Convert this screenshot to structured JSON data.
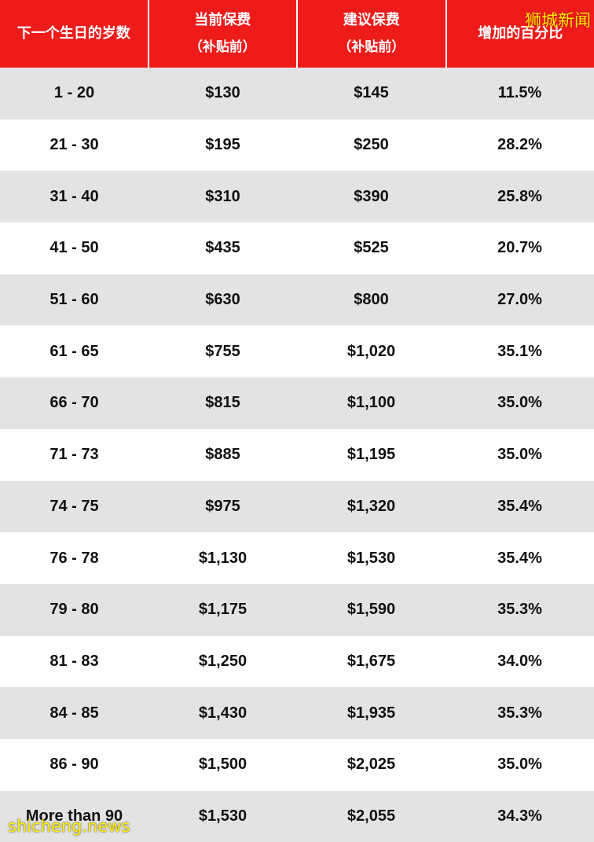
{
  "header": {
    "age": "下一个生日的岁数",
    "current_premium": "当前保费",
    "current_note": "（补贴前）",
    "proposed_premium": "建议保费",
    "proposed_note": "（补贴前）",
    "increase": "增加的百分比"
  },
  "rows": [
    {
      "age": "1 - 20",
      "current": "$130",
      "proposed": "$145",
      "increase": "11.5%"
    },
    {
      "age": "21 - 30",
      "current": "$195",
      "proposed": "$250",
      "increase": "28.2%"
    },
    {
      "age": "31 - 40",
      "current": "$310",
      "proposed": "$390",
      "increase": "25.8%"
    },
    {
      "age": "41 - 50",
      "current": "$435",
      "proposed": "$525",
      "increase": "20.7%"
    },
    {
      "age": "51 - 60",
      "current": "$630",
      "proposed": "$800",
      "increase": "27.0%"
    },
    {
      "age": "61 - 65",
      "current": "$755",
      "proposed": "$1,020",
      "increase": "35.1%"
    },
    {
      "age": "66 - 70",
      "current": "$815",
      "proposed": "$1,100",
      "increase": "35.0%"
    },
    {
      "age": "71 - 73",
      "current": "$885",
      "proposed": "$1,195",
      "increase": "35.0%"
    },
    {
      "age": "74 - 75",
      "current": "$975",
      "proposed": "$1,320",
      "increase": "35.4%"
    },
    {
      "age": "76 - 78",
      "current": "$1,130",
      "proposed": "$1,530",
      "increase": "35.4%"
    },
    {
      "age": "79 - 80",
      "current": "$1,175",
      "proposed": "$1,590",
      "increase": "35.3%"
    },
    {
      "age": "81 - 83",
      "current": "$1,250",
      "proposed": "$1,675",
      "increase": "34.0%"
    },
    {
      "age": "84 - 85",
      "current": "$1,430",
      "proposed": "$1,935",
      "increase": "35.3%"
    },
    {
      "age": "86 - 90",
      "current": "$1,500",
      "proposed": "$2,025",
      "increase": "35.0%"
    },
    {
      "age": "More than 90",
      "current": "$1,530",
      "proposed": "$2,055",
      "increase": "34.3%"
    }
  ],
  "watermarks": {
    "top": "狮城新闻",
    "bottom": "shicheng.news"
  },
  "colors": {
    "header_background": "#ee1b1b",
    "header_text": "#ffffff",
    "row_alt": "#e3e3e3",
    "watermark": "#ffee00"
  }
}
